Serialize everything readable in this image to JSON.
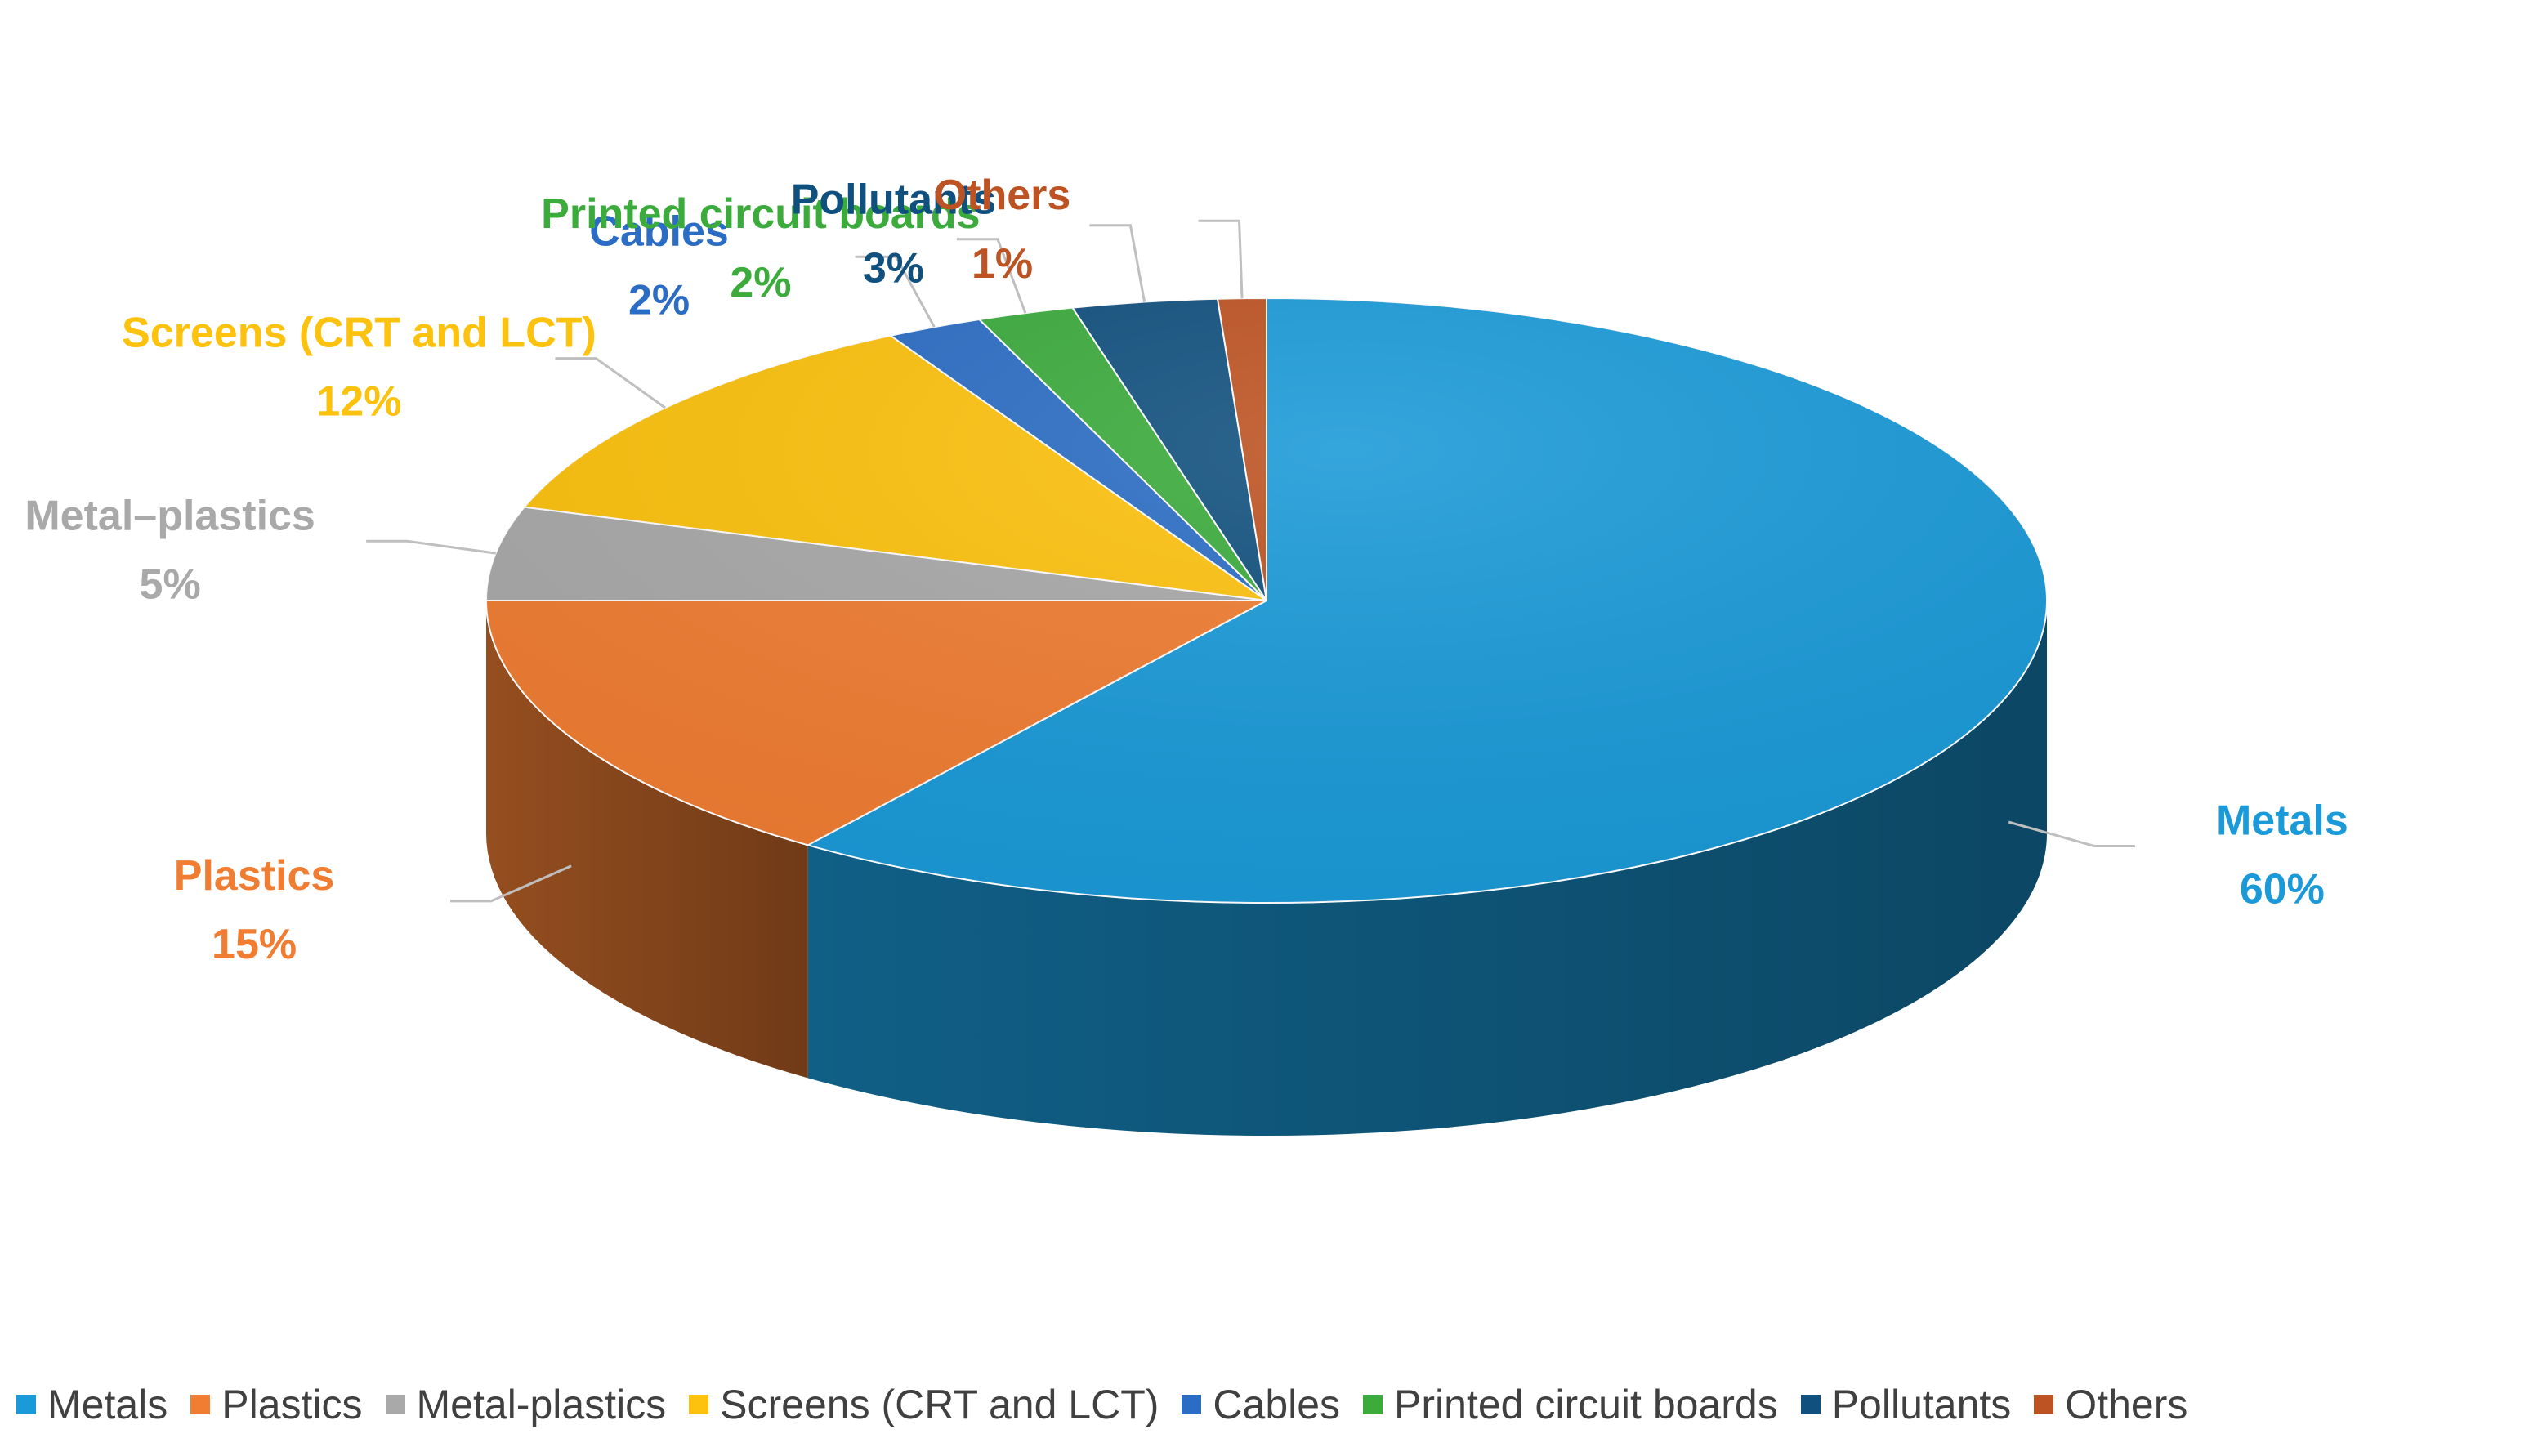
{
  "chart_data": {
    "type": "pie",
    "title": "",
    "categories": [
      "Metals",
      "Plastics",
      "Metal–plastics",
      "Screens (CRT and LCT)",
      "Cables",
      "Printed circuit boards",
      "Pollutants",
      "Others"
    ],
    "values": [
      60,
      15,
      5,
      12,
      2,
      2,
      3,
      1
    ],
    "value_labels": [
      "60%",
      "15%",
      "5%",
      "12%",
      "2%",
      "2%",
      "3%",
      "1%"
    ],
    "colors": [
      "#1a9ad8",
      "#f07d32",
      "#a9a9a9",
      "#fdc20d",
      "#2b6dc4",
      "#3bab3c",
      "#10507e",
      "#bd5222"
    ],
    "legend_position": "bottom",
    "three_d": true
  },
  "legend": {
    "items": [
      {
        "label": "Metals",
        "color": "#1a9ad8"
      },
      {
        "label": "Plastics",
        "color": "#f07d32"
      },
      {
        "label": "Metal-plastics",
        "color": "#a9a9a9"
      },
      {
        "label": "Screens (CRT and LCT)",
        "color": "#fdc20d"
      },
      {
        "label": "Cables",
        "color": "#2b6dc4"
      },
      {
        "label": "Printed circuit boards",
        "color": "#3bab3c"
      },
      {
        "label": "Pollutants",
        "color": "#10507e"
      },
      {
        "label": "Others",
        "color": "#bd5222"
      }
    ]
  }
}
